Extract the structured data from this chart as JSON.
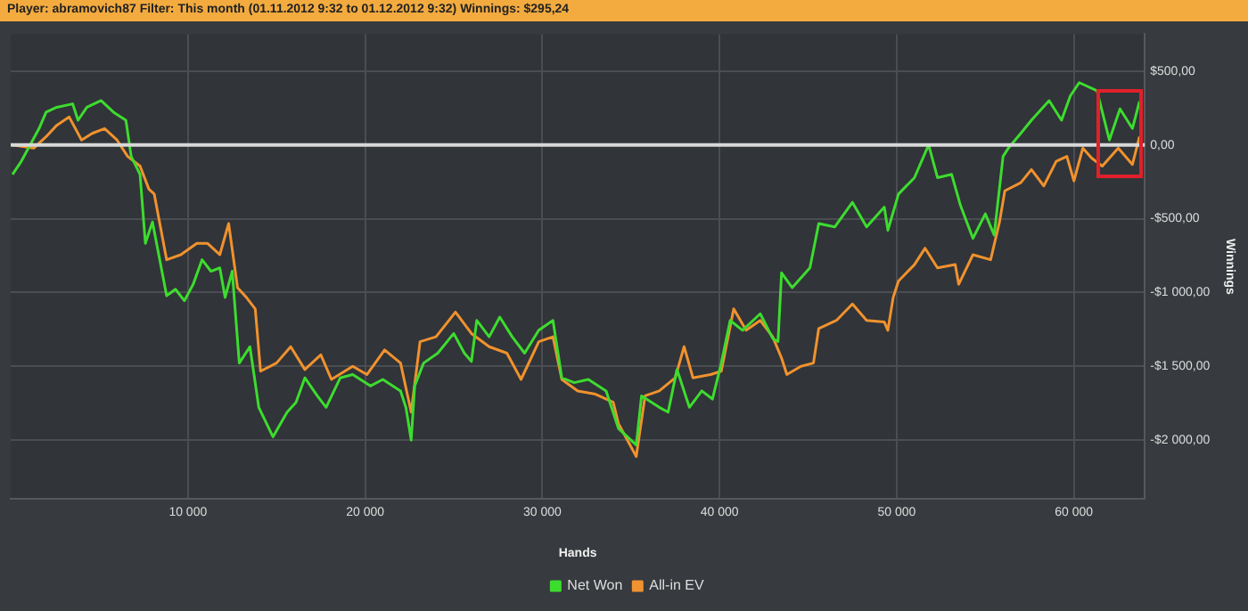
{
  "chart_data": {
    "type": "line",
    "title": "Player: abramovich87 Filter: This month (01.11.2012 9:32 to 01.12.2012 9:32) Winnings: $295,24",
    "xlabel": "Hands",
    "ylabel": "Winnings",
    "xlim": [
      0,
      64000
    ],
    "xticks": [
      {
        "value": 10000,
        "label": "10 000"
      },
      {
        "value": 20000,
        "label": "20 000"
      },
      {
        "value": 30000,
        "label": "30 000"
      },
      {
        "value": 40000,
        "label": "40 000"
      },
      {
        "value": 50000,
        "label": "50 000"
      },
      {
        "value": 60000,
        "label": "60 000"
      }
    ],
    "ylim": [
      -2400,
      750
    ],
    "yticks": [
      {
        "value": -2000,
        "label": "-$2 000,00"
      },
      {
        "value": -1500,
        "label": "-$1 500,00"
      },
      {
        "value": -1000,
        "label": "-$1 000,00"
      },
      {
        "value": -500,
        "label": "-$500,00"
      },
      {
        "value": 0,
        "label": "0,00"
      },
      {
        "value": 500,
        "label": "$500,00"
      }
    ],
    "grid": true,
    "legend": "bottom",
    "marker": "none",
    "line_style": "solid",
    "ref_lines": [
      {
        "axis": "y",
        "value": 0,
        "color": "#d8d8d8"
      }
    ],
    "series": [
      {
        "name": "Net Won",
        "color": "#3ddc2f",
        "x": [
          100,
          600,
          1600,
          2000,
          2600,
          3500,
          3800,
          4300,
          5100,
          5800,
          6500,
          6800,
          7300,
          7600,
          8000,
          8800,
          9300,
          9800,
          10300,
          10800,
          11300,
          11800,
          12100,
          12500,
          12900,
          13500,
          14000,
          14800,
          15600,
          16100,
          16600,
          17300,
          17800,
          18600,
          19300,
          20300,
          21000,
          22000,
          22300,
          22600,
          22800,
          23300,
          24100,
          25000,
          25600,
          26000,
          26300,
          27000,
          27600,
          28300,
          29000,
          29800,
          30600,
          31100,
          31800,
          32600,
          33600,
          34300,
          35300,
          35600,
          36600,
          37100,
          37600,
          38300,
          39000,
          39600,
          40100,
          40600,
          41300,
          42300,
          43000,
          43300,
          43500,
          44100,
          45100,
          45600,
          46500,
          47500,
          48300,
          49300,
          49500,
          50100,
          51000,
          51800,
          52300,
          53100,
          53600,
          54300,
          55000,
          55500,
          56000,
          56300,
          57000,
          57600,
          58600,
          59300,
          59800,
          60300,
          61300,
          62000,
          62600,
          63300,
          63700
        ],
        "values": [
          -200,
          -111,
          111,
          222,
          255,
          278,
          167,
          255,
          300,
          222,
          167,
          -78,
          -200,
          -667,
          -522,
          -1022,
          -978,
          -1056,
          -944,
          -778,
          -856,
          -833,
          -1033,
          -856,
          -1478,
          -1367,
          -1778,
          -1978,
          -1811,
          -1744,
          -1578,
          -1700,
          -1778,
          -1578,
          -1556,
          -1633,
          -1589,
          -1667,
          -1778,
          -2000,
          -1633,
          -1478,
          -1411,
          -1278,
          -1411,
          -1467,
          -1189,
          -1300,
          -1167,
          -1300,
          -1411,
          -1256,
          -1189,
          -1578,
          -1611,
          -1589,
          -1667,
          -1922,
          -2033,
          -1700,
          -1778,
          -1811,
          -1522,
          -1778,
          -1667,
          -1722,
          -1478,
          -1189,
          -1256,
          -1144,
          -1311,
          -1333,
          -867,
          -967,
          -833,
          -533,
          -556,
          -389,
          -556,
          -422,
          -578,
          -333,
          -222,
          0,
          -222,
          -200,
          -411,
          -633,
          -467,
          -611,
          -78,
          -22,
          78,
          167,
          300,
          167,
          333,
          422,
          367,
          33,
          244,
          111,
          295
        ]
      },
      {
        "name": "All-in EV",
        "color": "#f0922e",
        "x": [
          100,
          1300,
          2000,
          2600,
          3300,
          4000,
          4600,
          5300,
          6000,
          6600,
          7300,
          7800,
          8100,
          8800,
          9600,
          10500,
          11100,
          11800,
          12300,
          12800,
          13300,
          13800,
          14100,
          15000,
          15800,
          16600,
          17500,
          18100,
          19300,
          20100,
          21100,
          22000,
          22600,
          23100,
          24000,
          25100,
          26000,
          27000,
          28000,
          28800,
          29800,
          30600,
          31100,
          32000,
          33000,
          34000,
          34300,
          35300,
          35800,
          36600,
          37500,
          38000,
          38500,
          39500,
          40100,
          40800,
          41500,
          42300,
          43000,
          43500,
          43800,
          44600,
          45300,
          45600,
          46600,
          47500,
          48300,
          49300,
          49500,
          49800,
          50100,
          51000,
          51600,
          52300,
          53300,
          53500,
          54300,
          55300,
          55800,
          56100,
          57000,
          57600,
          58300,
          59000,
          59600,
          60000,
          60500,
          61000,
          61600,
          62500,
          63300,
          63700
        ],
        "values": [
          0,
          -22,
          56,
          133,
          189,
          33,
          78,
          111,
          33,
          -78,
          -144,
          -300,
          -333,
          -778,
          -744,
          -667,
          -667,
          -744,
          -533,
          -967,
          -1033,
          -1111,
          -1533,
          -1478,
          -1367,
          -1522,
          -1422,
          -1589,
          -1500,
          -1556,
          -1389,
          -1478,
          -1811,
          -1333,
          -1300,
          -1133,
          -1278,
          -1367,
          -1411,
          -1589,
          -1333,
          -1300,
          -1589,
          -1667,
          -1689,
          -1744,
          -1889,
          -2111,
          -1700,
          -1667,
          -1578,
          -1367,
          -1578,
          -1556,
          -1533,
          -1111,
          -1256,
          -1189,
          -1300,
          -1444,
          -1556,
          -1500,
          -1478,
          -1244,
          -1189,
          -1078,
          -1189,
          -1200,
          -1256,
          -1033,
          -922,
          -811,
          -700,
          -833,
          -811,
          -944,
          -744,
          -778,
          -522,
          -311,
          -256,
          -167,
          -278,
          -111,
          -78,
          -244,
          -22,
          -89,
          -144,
          -22,
          -133,
          56
        ]
      }
    ]
  }
}
